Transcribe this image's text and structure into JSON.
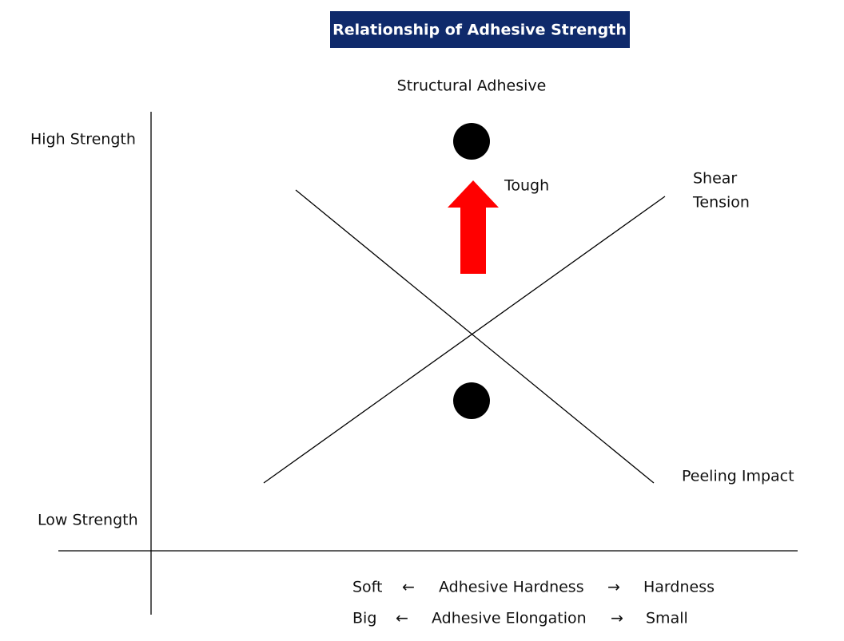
{
  "title": "Relationship of Adhesive Strength",
  "top_label": "Structural Adhesive",
  "y_axis": {
    "high": "High Strength",
    "low": "Low Strength"
  },
  "arrow_label": "Tough",
  "line_labels": {
    "upper": [
      "Shear",
      "Tension"
    ],
    "lower": "Peeling Impact"
  },
  "x_axis": {
    "rows": [
      [
        "Soft",
        "←",
        "Adhesive Hardness",
        "→",
        "Hardness"
      ],
      [
        "Big",
        "←",
        "Adhesive Elongation",
        "→",
        "Small"
      ]
    ]
  }
}
